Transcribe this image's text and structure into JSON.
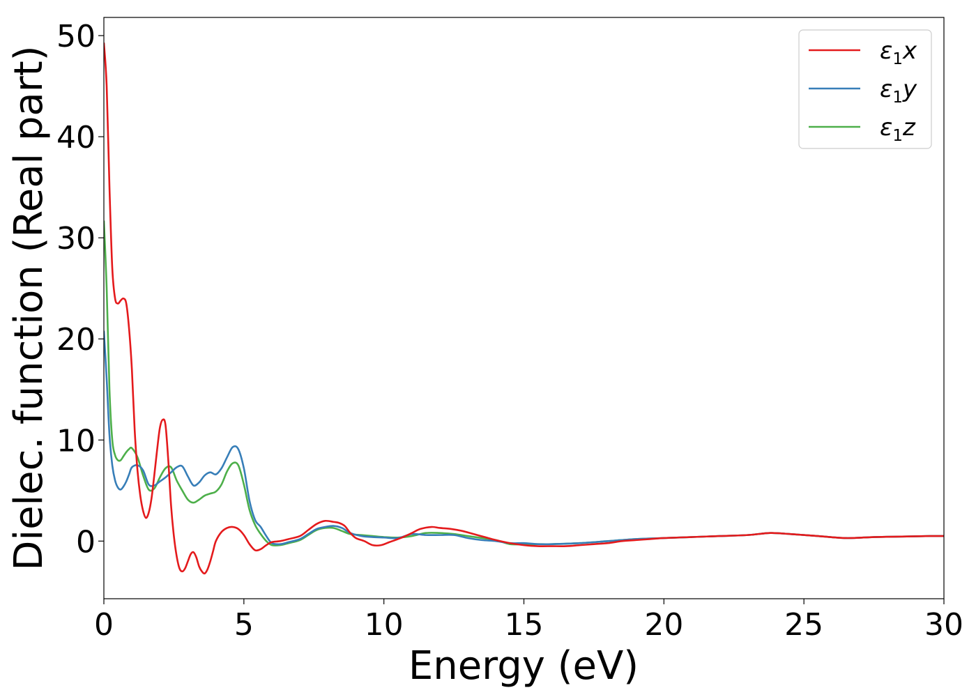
{
  "chart_data": {
    "type": "line",
    "title": "",
    "xlabel": "Energy (eV)",
    "ylabel": "Dielec. function (Real part)",
    "xlim": [
      0,
      30
    ],
    "ylim": [
      -5.7,
      51.8
    ],
    "xticks": [
      0,
      5,
      10,
      15,
      20,
      25,
      30
    ],
    "yticks": [
      0,
      10,
      20,
      30,
      40,
      50
    ],
    "grid": false,
    "legend_position": "top-right",
    "series": [
      {
        "name": "ε1x",
        "legend": {
          "base": "ε",
          "sub": "1",
          "axis": "x"
        },
        "color": "#e41a1c",
        "x": [
          0,
          0.1,
          0.2,
          0.3,
          0.4,
          0.5,
          0.6,
          0.7,
          0.8,
          0.9,
          1.0,
          1.1,
          1.2,
          1.3,
          1.4,
          1.5,
          1.6,
          1.7,
          1.8,
          1.9,
          2.0,
          2.1,
          2.2,
          2.3,
          2.4,
          2.5,
          2.6,
          2.7,
          2.8,
          2.9,
          3.0,
          3.1,
          3.2,
          3.3,
          3.4,
          3.5,
          3.6,
          3.7,
          3.8,
          3.9,
          4.0,
          4.2,
          4.4,
          4.6,
          4.8,
          5.0,
          5.2,
          5.4,
          5.6,
          5.8,
          6.0,
          6.3,
          6.6,
          7.0,
          7.3,
          7.6,
          7.9,
          8.2,
          8.4,
          8.6,
          8.8,
          9.0,
          9.3,
          9.6,
          9.9,
          10.2,
          10.6,
          11.0,
          11.3,
          11.7,
          12.0,
          12.4,
          12.8,
          13.2,
          13.6,
          14.0,
          14.5,
          15.0,
          15.5,
          16.0,
          16.5,
          17.0,
          17.5,
          18.0,
          18.5,
          19.0,
          19.5,
          20.0,
          21.0,
          22.0,
          23.0,
          23.8,
          24.5,
          25.5,
          26.5,
          27.5,
          28.5,
          29.5,
          30.0
        ],
        "y": [
          49.3,
          45,
          35,
          27,
          24,
          23.5,
          23.8,
          24,
          23.5,
          21,
          17,
          11,
          7,
          4.5,
          3,
          2.3,
          2.8,
          4.2,
          6.5,
          9,
          11.2,
          12,
          11.5,
          8,
          3.5,
          0.5,
          -1.5,
          -2.7,
          -3,
          -2.7,
          -2,
          -1.3,
          -1.1,
          -1.6,
          -2.5,
          -3,
          -3.2,
          -2.8,
          -2,
          -1,
          0,
          0.9,
          1.3,
          1.4,
          1.2,
          0.6,
          -0.3,
          -0.9,
          -0.8,
          -0.4,
          -0.1,
          0,
          0.2,
          0.5,
          1.1,
          1.7,
          2.0,
          1.9,
          1.8,
          1.5,
          0.8,
          0.3,
          0,
          -0.4,
          -0.4,
          -0.1,
          0.3,
          0.8,
          1.2,
          1.4,
          1.3,
          1.2,
          1.0,
          0.7,
          0.4,
          0.1,
          -0.2,
          -0.4,
          -0.5,
          -0.5,
          -0.5,
          -0.4,
          -0.3,
          -0.2,
          0,
          0.1,
          0.2,
          0.3,
          0.4,
          0.5,
          0.6,
          0.8,
          0.7,
          0.5,
          0.3,
          0.4,
          0.45,
          0.5,
          0.5
        ]
      },
      {
        "name": "ε1y",
        "legend": {
          "base": "ε",
          "sub": "1",
          "axis": "y"
        },
        "color": "#377eb8",
        "x": [
          0,
          0.1,
          0.2,
          0.3,
          0.4,
          0.5,
          0.6,
          0.7,
          0.8,
          0.9,
          1.0,
          1.2,
          1.4,
          1.6,
          1.8,
          2.0,
          2.2,
          2.4,
          2.6,
          2.8,
          3.0,
          3.2,
          3.4,
          3.6,
          3.8,
          4.0,
          4.2,
          4.4,
          4.6,
          4.8,
          5.0,
          5.2,
          5.4,
          5.6,
          5.8,
          6.0,
          6.3,
          6.6,
          7.0,
          7.3,
          7.6,
          7.9,
          8.2,
          8.5,
          8.8,
          9.2,
          9.6,
          10.0,
          10.5,
          11.0,
          11.5,
          12.0,
          12.5,
          13.0,
          13.5,
          14.0,
          14.5,
          15.0,
          15.5,
          16.0,
          17.0,
          18.0,
          19.0,
          20.0,
          21.0,
          22.0,
          23.0,
          23.8,
          24.5,
          25.5,
          26.5,
          27.5,
          28.5,
          29.5,
          30.0
        ],
        "y": [
          20.8,
          16,
          10.5,
          7.5,
          6.0,
          5.3,
          5.1,
          5.4,
          5.9,
          6.6,
          7.3,
          7.5,
          7.0,
          5.6,
          5.5,
          5.9,
          6.3,
          6.8,
          7.3,
          7.4,
          6.4,
          5.5,
          5.8,
          6.5,
          6.8,
          6.6,
          7.2,
          8.3,
          9.3,
          9.1,
          7.2,
          4.0,
          2.1,
          1.4,
          0.5,
          -0.2,
          -0.3,
          -0.1,
          0.2,
          0.7,
          1.2,
          1.4,
          1.5,
          1.3,
          0.8,
          0.5,
          0.4,
          0.35,
          0.3,
          0.7,
          0.6,
          0.6,
          0.6,
          0.3,
          0.1,
          0,
          -0.2,
          -0.2,
          -0.3,
          -0.3,
          -0.2,
          0,
          0.2,
          0.3,
          0.4,
          0.5,
          0.6,
          0.8,
          0.7,
          0.5,
          0.3,
          0.4,
          0.45,
          0.5,
          0.5
        ]
      },
      {
        "name": "ε1z",
        "legend": {
          "base": "ε",
          "sub": "1",
          "axis": "z"
        },
        "color": "#4daf4a",
        "x": [
          0,
          0.1,
          0.2,
          0.3,
          0.4,
          0.5,
          0.6,
          0.7,
          0.8,
          0.9,
          1.0,
          1.2,
          1.4,
          1.6,
          1.8,
          2.0,
          2.2,
          2.4,
          2.6,
          2.8,
          3.0,
          3.2,
          3.4,
          3.6,
          3.8,
          4.0,
          4.2,
          4.4,
          4.6,
          4.8,
          5.0,
          5.2,
          5.4,
          5.6,
          5.8,
          6.0,
          6.3,
          6.6,
          7.0,
          7.3,
          7.6,
          7.9,
          8.2,
          8.5,
          8.8,
          9.2,
          9.6,
          10.0,
          10.5,
          11.0,
          11.5,
          12.0,
          12.5,
          13.0,
          13.5,
          14.0,
          14.5,
          15.0,
          15.5,
          16.0,
          17.0,
          18.0,
          19.0,
          20.0,
          21.0,
          22.0,
          23.0,
          23.8,
          24.5,
          25.5,
          26.5,
          27.5,
          28.5,
          29.5,
          30.0
        ],
        "y": [
          31.7,
          25,
          15,
          10,
          8.5,
          8.0,
          8.0,
          8.4,
          8.8,
          9.1,
          9.2,
          8.3,
          6.5,
          5.1,
          5.2,
          6.3,
          7.2,
          7.3,
          6.0,
          5.0,
          4.1,
          3.8,
          4.1,
          4.5,
          4.7,
          4.9,
          5.6,
          6.9,
          7.7,
          7.5,
          5.6,
          3.1,
          1.6,
          0.7,
          0.0,
          -0.4,
          -0.4,
          -0.2,
          0.1,
          0.6,
          1.1,
          1.3,
          1.3,
          1.0,
          0.7,
          0.6,
          0.5,
          0.4,
          0.35,
          0.5,
          0.8,
          0.8,
          0.7,
          0.5,
          0.3,
          0.1,
          -0.3,
          -0.3,
          -0.3,
          -0.3,
          -0.2,
          0,
          0.2,
          0.3,
          0.4,
          0.5,
          0.6,
          0.8,
          0.7,
          0.5,
          0.3,
          0.4,
          0.45,
          0.5,
          0.5
        ]
      }
    ]
  }
}
